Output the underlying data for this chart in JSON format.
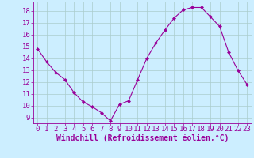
{
  "x": [
    0,
    1,
    2,
    3,
    4,
    5,
    6,
    7,
    8,
    9,
    10,
    11,
    12,
    13,
    14,
    15,
    16,
    17,
    18,
    19,
    20,
    21,
    22,
    23
  ],
  "y": [
    14.8,
    13.7,
    12.8,
    12.2,
    11.1,
    10.3,
    9.9,
    9.4,
    8.7,
    10.1,
    10.4,
    12.2,
    14.0,
    15.3,
    16.4,
    17.4,
    18.1,
    18.3,
    18.3,
    17.5,
    16.7,
    14.5,
    13.0,
    11.8
  ],
  "line_color": "#990099",
  "marker": "D",
  "marker_size": 2.0,
  "xlabel": "Windchill (Refroidissement éolien,°C)",
  "xlabel_color": "#990099",
  "bg_color": "#cceeff",
  "grid_color": "#aacccc",
  "tick_color": "#990099",
  "ylim_min": 8.5,
  "ylim_max": 18.8,
  "xlim_min": -0.5,
  "xlim_max": 23.5,
  "yticks": [
    9,
    10,
    11,
    12,
    13,
    14,
    15,
    16,
    17,
    18
  ],
  "xticks": [
    0,
    1,
    2,
    3,
    4,
    5,
    6,
    7,
    8,
    9,
    10,
    11,
    12,
    13,
    14,
    15,
    16,
    17,
    18,
    19,
    20,
    21,
    22,
    23
  ],
  "tick_fontsize": 6.5,
  "xlabel_fontsize": 7.0
}
